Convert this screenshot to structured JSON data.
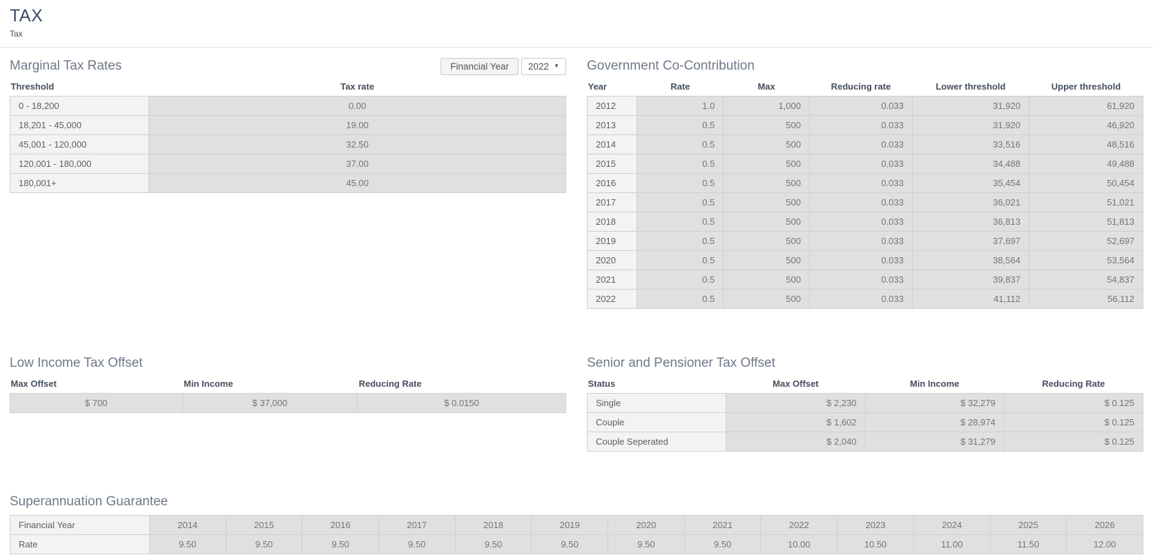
{
  "page": {
    "title": "TAX",
    "subtitle": "Tax"
  },
  "controls": {
    "financial_year": {
      "label": "Financial Year",
      "value": "2022",
      "caret_icon": "▼"
    }
  },
  "sections": {
    "marginal_tax_rates": {
      "title": "Marginal Tax Rates",
      "columns": [
        "Threshold",
        "Tax rate"
      ],
      "rows": [
        [
          "0 - 18,200",
          "0.00"
        ],
        [
          "18,201 - 45,000",
          "19.00"
        ],
        [
          "45,001 - 120,000",
          "32.50"
        ],
        [
          "120,001 - 180,000",
          "37.00"
        ],
        [
          "180,001+",
          "45.00"
        ]
      ]
    },
    "government_co_contribution": {
      "title": "Government Co-Contribution",
      "columns": [
        "Year",
        "Rate",
        "Max",
        "Reducing rate",
        "Lower threshold",
        "Upper threshold"
      ],
      "rows": [
        [
          "2012",
          "1.0",
          "1,000",
          "0.033",
          "31,920",
          "61,920"
        ],
        [
          "2013",
          "0.5",
          "500",
          "0.033",
          "31,920",
          "46,920"
        ],
        [
          "2014",
          "0.5",
          "500",
          "0.033",
          "33,516",
          "48,516"
        ],
        [
          "2015",
          "0.5",
          "500",
          "0.033",
          "34,488",
          "49,488"
        ],
        [
          "2016",
          "0.5",
          "500",
          "0.033",
          "35,454",
          "50,454"
        ],
        [
          "2017",
          "0.5",
          "500",
          "0.033",
          "36,021",
          "51,021"
        ],
        [
          "2018",
          "0.5",
          "500",
          "0.033",
          "36,813",
          "51,813"
        ],
        [
          "2019",
          "0.5",
          "500",
          "0.033",
          "37,697",
          "52,697"
        ],
        [
          "2020",
          "0.5",
          "500",
          "0.033",
          "38,564",
          "53,564"
        ],
        [
          "2021",
          "0.5",
          "500",
          "0.033",
          "39,837",
          "54,837"
        ],
        [
          "2022",
          "0.5",
          "500",
          "0.033",
          "41,112",
          "56,112"
        ]
      ]
    },
    "low_income_tax_offset": {
      "title": "Low Income Tax Offset",
      "columns": [
        "Max Offset",
        "Min Income",
        "Reducing Rate"
      ],
      "rows": [
        [
          "$ 700",
          "$ 37,000",
          "$ 0.0150"
        ]
      ]
    },
    "senior_and_pensioner_tax_offset": {
      "title": "Senior and Pensioner Tax Offset",
      "columns": [
        "Status",
        "Max Offset",
        "Min Income",
        "Reducing Rate"
      ],
      "rows": [
        [
          "Single",
          "$ 2,230",
          "$ 32,279",
          "$ 0.125"
        ],
        [
          "Couple",
          "$ 1,602",
          "$ 28,974",
          "$ 0.125"
        ],
        [
          "Couple Seperated",
          "$ 2,040",
          "$ 31,279",
          "$ 0.125"
        ]
      ]
    },
    "superannuation_guarantee": {
      "title": "Superannuation Guarantee",
      "rows": [
        [
          "Financial Year",
          "2014",
          "2015",
          "2016",
          "2017",
          "2018",
          "2019",
          "2020",
          "2021",
          "2022",
          "2023",
          "2024",
          "2025",
          "2026"
        ],
        [
          "Rate",
          "9.50",
          "9.50",
          "9.50",
          "9.50",
          "9.50",
          "9.50",
          "9.50",
          "9.50",
          "10.00",
          "10.50",
          "11.00",
          "11.50",
          "12.00"
        ]
      ]
    }
  },
  "colors": {
    "page_title": "#3d4b69",
    "section_title": "#6f7889",
    "table_header_text": "#454f5d",
    "label_cell_bg": "#f3f3f3",
    "value_cell_bg": "#e0e0e0"
  }
}
